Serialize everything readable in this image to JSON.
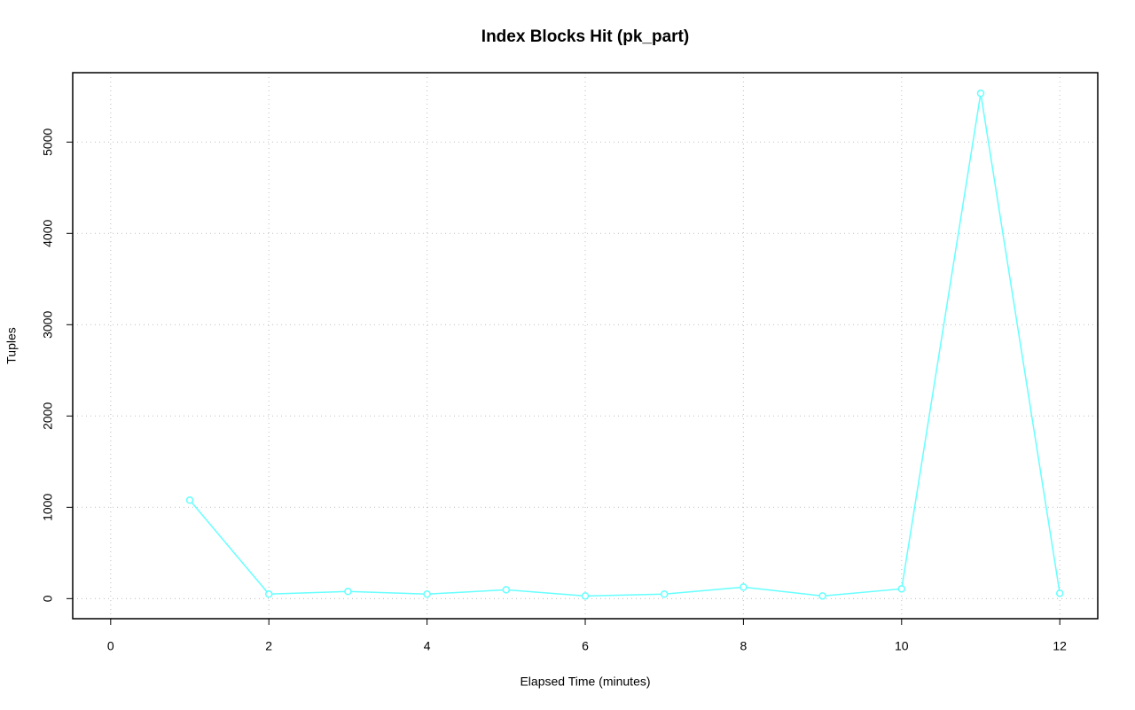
{
  "chart_data": {
    "type": "line",
    "title": "Index Blocks Hit (pk_part)",
    "x_label": "Elapsed Time (minutes)",
    "y_label": "Tuples",
    "x": [
      1,
      2,
      3,
      4,
      5,
      6,
      7,
      8,
      9,
      10,
      11,
      12
    ],
    "series": [
      {
        "name": "pk_part",
        "color": "#66ffff",
        "values": [
          1078,
          49,
          78,
          49,
          97,
          29,
          49,
          126,
          29,
          107,
          5534,
          58
        ]
      }
    ],
    "xlim": [
      -0.48,
      12.48
    ],
    "xticks": [
      0,
      2,
      4,
      6,
      8,
      10,
      12
    ],
    "ylim": [
      -220,
      5760
    ],
    "yticks": [
      0,
      1000,
      2000,
      3000,
      4000,
      5000
    ],
    "grid": true
  }
}
